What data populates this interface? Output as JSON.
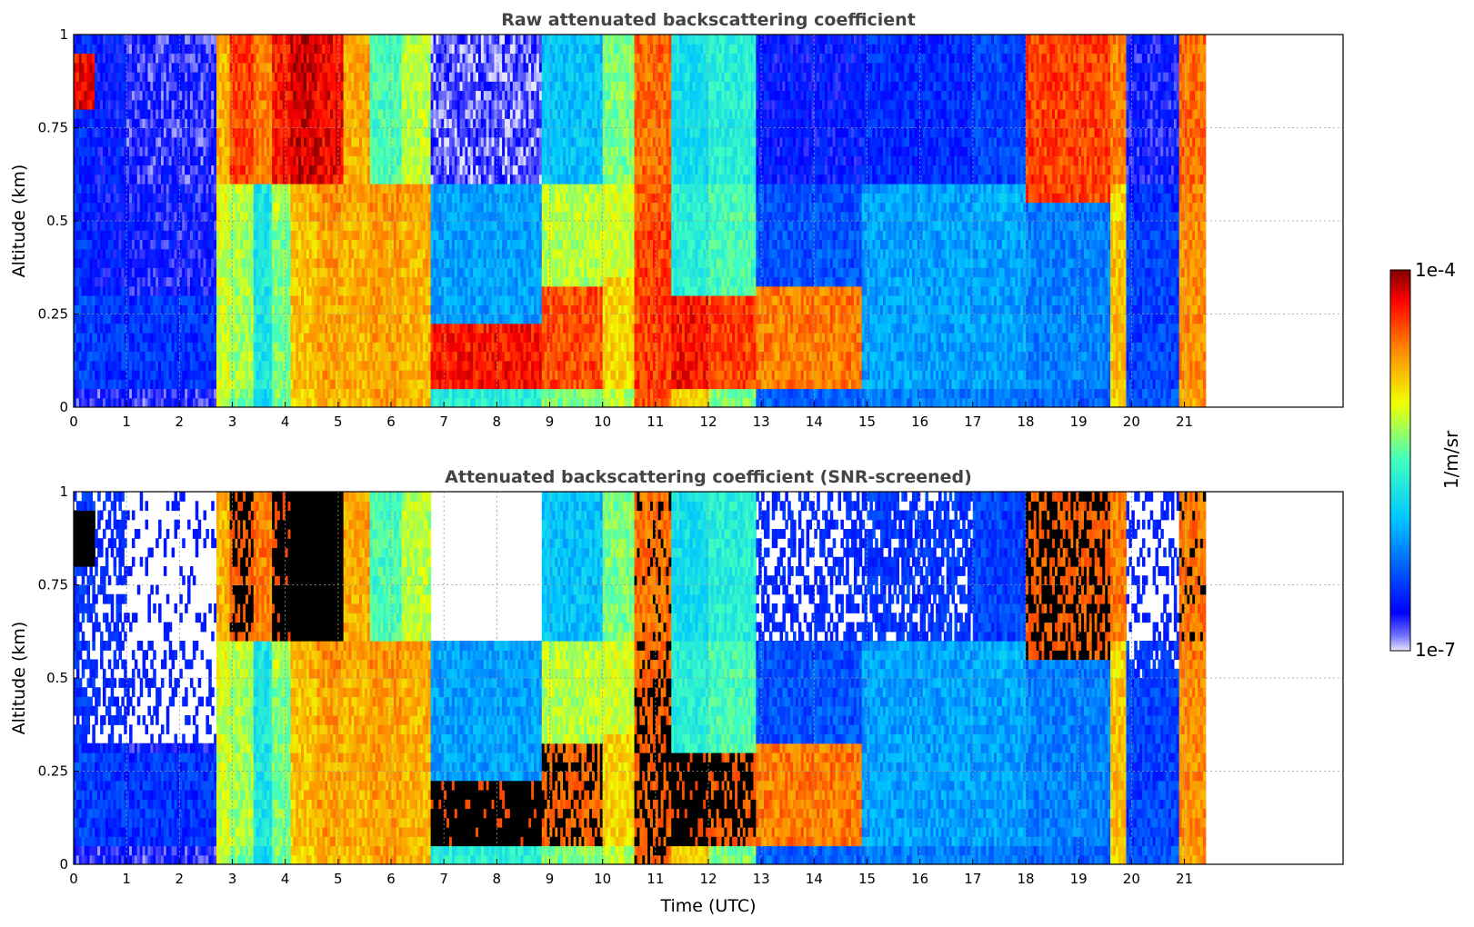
{
  "chart_data": [
    {
      "type": "heatmap",
      "title": "Raw attenuated backscattering coefficient",
      "xlabel": "",
      "ylabel": "Altitude (km)",
      "xlim": [
        0,
        24
      ],
      "ylim": [
        0,
        1
      ],
      "x_ticks": [
        "0",
        "1",
        "2",
        "3",
        "4",
        "5",
        "6",
        "7",
        "8",
        "9",
        "10",
        "11",
        "12",
        "13",
        "14",
        "15",
        "16",
        "17",
        "18",
        "19",
        "20",
        "21"
      ],
      "y_ticks": [
        "0",
        "0.25",
        "0.5",
        "0.75",
        "1"
      ],
      "grid": true,
      "data_extent_hours": [
        0,
        21.4
      ],
      "segments": [
        {
          "t0": 0.0,
          "t1": 0.4,
          "sfc": 0.08,
          "low_h": 0.3,
          "low": 0.18,
          "mid": 0.15,
          "top": 0.15,
          "cloud": [
            0.78,
            0.95
          ],
          "cloud_v": 0.92
        },
        {
          "t0": 0.4,
          "t1": 1.0,
          "sfc": 0.08,
          "low_h": 0.32,
          "low": 0.16,
          "mid": 0.12,
          "top": 0.12
        },
        {
          "t0": 1.0,
          "t1": 2.7,
          "sfc": 0.08,
          "low_h": 0.28,
          "low": 0.16,
          "mid": 0.1,
          "top": 0.08
        },
        {
          "t0": 2.7,
          "t1": 2.95,
          "sfc": 0.62,
          "low_h": 0.5,
          "low": 0.62,
          "mid": 0.64,
          "top": 0.74
        },
        {
          "t0": 2.95,
          "t1": 3.4,
          "sfc": 0.55,
          "low_h": 0.5,
          "low": 0.58,
          "mid": 0.6,
          "top": 0.86
        },
        {
          "t0": 3.4,
          "t1": 3.75,
          "sfc": 0.4,
          "low_h": 0.5,
          "low": 0.42,
          "mid": 0.42,
          "top": 0.8
        },
        {
          "t0": 3.75,
          "t1": 4.1,
          "sfc": 0.55,
          "low_h": 0.5,
          "low": 0.55,
          "mid": 0.6,
          "top": 0.9
        },
        {
          "t0": 4.1,
          "t1": 4.6,
          "sfc": 0.7,
          "low_h": 0.5,
          "low": 0.72,
          "mid": 0.74,
          "top": 0.95
        },
        {
          "t0": 4.6,
          "t1": 5.1,
          "sfc": 0.74,
          "low_h": 0.5,
          "low": 0.76,
          "mid": 0.78,
          "top": 0.92
        },
        {
          "t0": 5.1,
          "t1": 5.6,
          "sfc": 0.72,
          "low_h": 0.5,
          "low": 0.74,
          "mid": 0.76,
          "top": 0.75
        },
        {
          "t0": 5.6,
          "t1": 6.2,
          "sfc": 0.76,
          "low_h": 0.5,
          "low": 0.76,
          "mid": 0.78,
          "top": 0.5
        },
        {
          "t0": 6.2,
          "t1": 6.75,
          "sfc": 0.74,
          "low_h": 0.5,
          "low": 0.74,
          "mid": 0.76,
          "top": 0.6
        },
        {
          "t0": 6.75,
          "t1": 8.85,
          "sfc": 0.45,
          "low_h": 0.2,
          "low": 0.9,
          "mid": 0.3,
          "top": 0.05
        },
        {
          "t0": 8.85,
          "t1": 10.0,
          "sfc": 0.55,
          "low_h": 0.32,
          "low": 0.85,
          "mid": 0.6,
          "top": 0.35
        },
        {
          "t0": 10.0,
          "t1": 10.6,
          "sfc": 0.6,
          "low_h": 0.35,
          "low": 0.7,
          "mid": 0.62,
          "top": 0.55
        },
        {
          "t0": 10.6,
          "t1": 11.3,
          "sfc": 0.84,
          "low_h": 0.5,
          "low": 0.86,
          "mid": 0.84,
          "top": 0.82
        },
        {
          "t0": 11.3,
          "t1": 12.0,
          "sfc": 0.7,
          "low_h": 0.3,
          "low": 0.9,
          "mid": 0.45,
          "top": 0.4
        },
        {
          "t0": 12.0,
          "t1": 12.9,
          "sfc": 0.55,
          "low_h": 0.3,
          "low": 0.86,
          "mid": 0.5,
          "top": 0.45
        },
        {
          "t0": 12.9,
          "t1": 14.9,
          "sfc": 0.22,
          "low_h": 0.32,
          "low": 0.8,
          "mid": 0.2,
          "top": 0.12
        },
        {
          "t0": 14.9,
          "t1": 17.0,
          "sfc": 0.25,
          "low_h": 0.5,
          "low": 0.3,
          "mid": 0.3,
          "top": 0.15
        },
        {
          "t0": 17.0,
          "t1": 18.0,
          "sfc": 0.25,
          "low_h": 0.5,
          "low": 0.3,
          "mid": 0.32,
          "top": 0.18
        },
        {
          "t0": 18.0,
          "t1": 19.6,
          "sfc": 0.22,
          "low_h": 0.5,
          "low": 0.26,
          "mid": 0.25,
          "top": 0.2,
          "cloud": [
            0.55,
            1.0
          ],
          "cloud_v": 0.86
        },
        {
          "t0": 19.6,
          "t1": 19.9,
          "sfc": 0.7,
          "low_h": 0.5,
          "low": 0.72,
          "mid": 0.7,
          "top": 0.8
        },
        {
          "t0": 19.9,
          "t1": 20.9,
          "sfc": 0.2,
          "low_h": 0.5,
          "low": 0.18,
          "mid": 0.16,
          "top": 0.1
        },
        {
          "t0": 20.9,
          "t1": 21.4,
          "sfc": 0.76,
          "low_h": 0.5,
          "low": 0.78,
          "mid": 0.8,
          "top": 0.82
        }
      ]
    },
    {
      "type": "heatmap",
      "title": "Attenuated backscattering coefficient (SNR-screened)",
      "xlabel": "Time (UTC)",
      "ylabel": "Altitude (km)",
      "xlim": [
        0,
        24
      ],
      "ylim": [
        0,
        1
      ],
      "x_ticks": [
        "0",
        "1",
        "2",
        "3",
        "4",
        "5",
        "6",
        "7",
        "8",
        "9",
        "10",
        "11",
        "12",
        "13",
        "14",
        "15",
        "16",
        "17",
        "18",
        "19",
        "20",
        "21"
      ],
      "y_ticks": [
        "0",
        "0.25",
        "0.5",
        "0.75",
        "1"
      ],
      "grid": true,
      "data_extent_hours": [
        0,
        21.4
      ],
      "screened": true
    }
  ],
  "colorbar": {
    "label": "1/m/sr",
    "max_label": "1e-4",
    "min_label": "1e-7",
    "scale": "log"
  },
  "colors": {
    "screened_high": "#000000",
    "title_color": "#444444"
  }
}
